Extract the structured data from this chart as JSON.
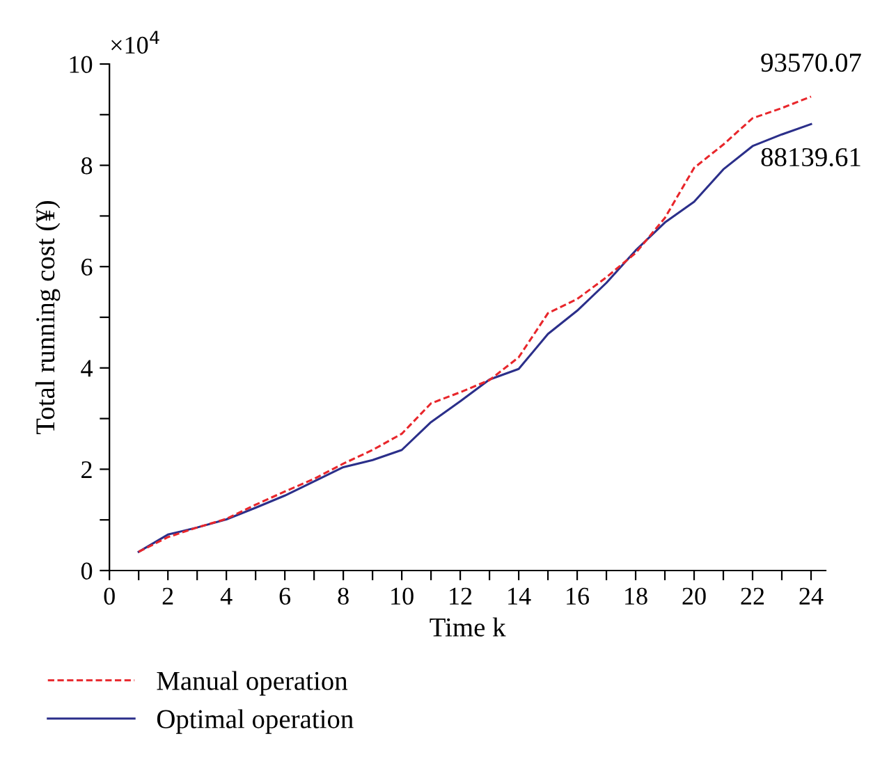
{
  "chart_data": {
    "type": "line",
    "xlabel": "Time k",
    "ylabel": "Total running cost (¥)",
    "x": [
      1,
      2,
      3,
      4,
      5,
      6,
      7,
      8,
      9,
      10,
      11,
      12,
      13,
      14,
      15,
      16,
      17,
      18,
      19,
      20,
      21,
      22,
      23,
      24
    ],
    "series": [
      {
        "name": "Manual operation",
        "color": "#e8262b",
        "line_style": "dashed",
        "values": [
          0.37,
          0.66,
          0.85,
          1.02,
          1.3,
          1.56,
          1.81,
          2.11,
          2.38,
          2.7,
          3.3,
          3.52,
          3.76,
          4.21,
          5.08,
          5.36,
          5.79,
          6.27,
          6.96,
          7.95,
          8.41,
          8.93,
          9.13,
          9.357007
        ]
      },
      {
        "name": "Optimal operation",
        "color": "#2b2f8a",
        "line_style": "solid",
        "values": [
          0.37,
          0.71,
          0.85,
          1.01,
          1.24,
          1.48,
          1.76,
          2.04,
          2.18,
          2.38,
          2.93,
          3.34,
          3.77,
          3.98,
          4.67,
          5.13,
          5.68,
          6.32,
          6.87,
          7.28,
          7.92,
          8.38,
          8.61,
          8.813961
        ]
      }
    ],
    "xlim": [
      0,
      24.5
    ],
    "ylim": [
      0,
      10
    ],
    "xticks": [
      0,
      {
        "value": 1,
        "label": null
      },
      2,
      {
        "value": 3,
        "label": null
      },
      4,
      {
        "value": 5,
        "label": null
      },
      6,
      {
        "value": 7,
        "label": null
      },
      8,
      {
        "value": 9,
        "label": null
      },
      10,
      {
        "value": 11,
        "label": null
      },
      12,
      {
        "value": 13,
        "label": null
      },
      14,
      {
        "value": 15,
        "label": null
      },
      16,
      {
        "value": 17,
        "label": null
      },
      18,
      {
        "value": 19,
        "label": null
      },
      20,
      {
        "value": 21,
        "label": null
      },
      22,
      {
        "value": 23,
        "label": null
      },
      24
    ],
    "yticks": [
      0,
      {
        "value": 1,
        "label": null
      },
      2,
      {
        "value": 3,
        "label": null
      },
      4,
      {
        "value": 5,
        "label": null
      },
      6,
      {
        "value": 7,
        "label": null
      },
      8,
      {
        "value": 9,
        "label": null
      },
      10
    ],
    "annotations": [
      "×10$^{4}$",
      {
        "text": "93570.07",
        "x": 24,
        "y": 9.357007
      },
      {
        "text": "88139.61",
        "x": 24,
        "y": 8.813961
      }
    ],
    "legend": "bottom",
    "grid": false,
    "marker": "none"
  }
}
